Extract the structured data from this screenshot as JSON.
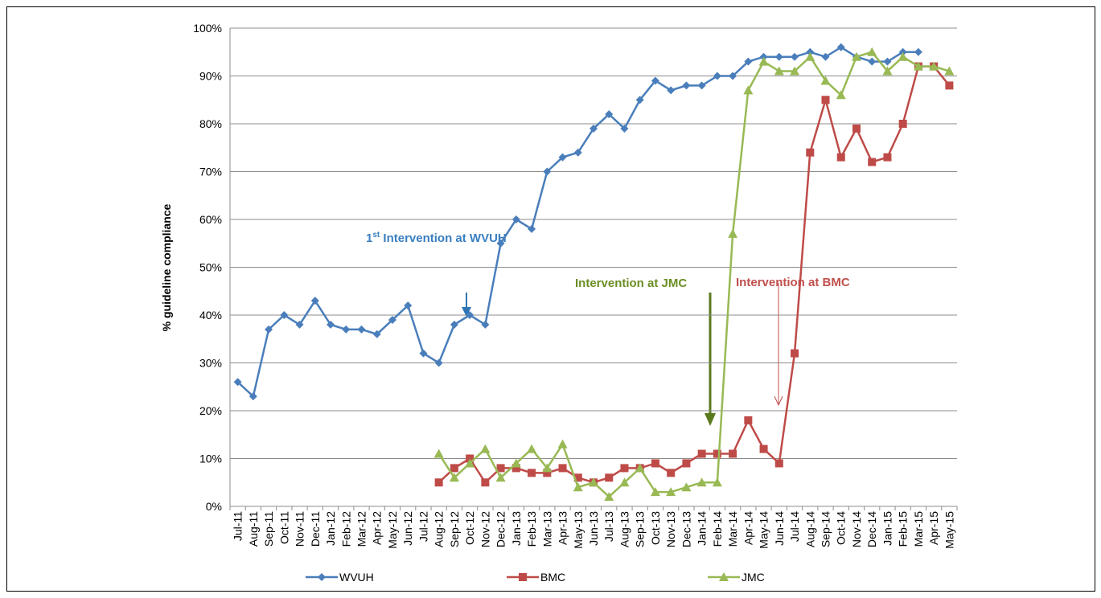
{
  "chart_data": {
    "type": "line",
    "ylabel": "% guideline compliance",
    "categories": [
      "Jul-11",
      "Aug-11",
      "Sep-11",
      "Oct-11",
      "Nov-11",
      "Dec-11",
      "Jan-12",
      "Feb-12",
      "Mar-12",
      "Apr-12",
      "May-12",
      "Jun-12",
      "Jul-12",
      "Aug-12",
      "Sep-12",
      "Oct-12",
      "Nov-12",
      "Dec-12",
      "Jan-13",
      "Feb-13",
      "Mar-13",
      "Apr-13",
      "May-13",
      "Jun-13",
      "Jul-13",
      "Aug-13",
      "Sep-13",
      "Oct-13",
      "Nov-13",
      "Dec-13",
      "Jan-14",
      "Feb-14",
      "Mar-14",
      "Apr-14",
      "May-14",
      "Jun-14",
      "Jul-14",
      "Aug-14",
      "Sep-14",
      "Oct-14",
      "Nov-14",
      "Dec-14",
      "Jan-15",
      "Feb-15",
      "Mar-15",
      "Apr-15",
      "May-15"
    ],
    "series": [
      {
        "name": "WVUH",
        "color": "#4a7ebb",
        "marker": "diamond",
        "values": [
          26,
          23,
          37,
          40,
          38,
          43,
          38,
          37,
          37,
          36,
          39,
          42,
          32,
          30,
          38,
          40,
          38,
          55,
          60,
          58,
          70,
          73,
          74,
          79,
          82,
          79,
          85,
          89,
          87,
          88,
          88,
          90,
          90,
          93,
          94,
          94,
          94,
          95,
          94,
          96,
          94,
          93,
          93,
          95,
          95,
          null,
          null
        ]
      },
      {
        "name": "BMC",
        "color": "#be4b48",
        "marker": "square",
        "values": [
          null,
          null,
          null,
          null,
          null,
          null,
          null,
          null,
          null,
          null,
          null,
          null,
          null,
          5,
          8,
          10,
          5,
          8,
          8,
          7,
          7,
          8,
          6,
          5,
          6,
          8,
          8,
          9,
          7,
          9,
          11,
          11,
          11,
          18,
          12,
          9,
          32,
          74,
          85,
          73,
          79,
          72,
          73,
          80,
          92,
          92,
          88
        ]
      },
      {
        "name": "JMC",
        "color": "#98b954",
        "marker": "triangle",
        "values": [
          null,
          null,
          null,
          null,
          null,
          null,
          null,
          null,
          null,
          null,
          null,
          null,
          null,
          11,
          6,
          9,
          12,
          6,
          9,
          12,
          8,
          13,
          4,
          5,
          2,
          5,
          8,
          3,
          3,
          4,
          5,
          5,
          57,
          87,
          93,
          91,
          91,
          94,
          89,
          86,
          94,
          95,
          91,
          94,
          92,
          92,
          91
        ]
      }
    ],
    "ylim": [
      0,
      100
    ],
    "yticks": [
      {
        "value": 0,
        "label": "0%"
      },
      {
        "value": 10,
        "label": "10%"
      },
      {
        "value": 20,
        "label": "20%"
      },
      {
        "value": 30,
        "label": "30%"
      },
      {
        "value": 40,
        "label": "40%"
      },
      {
        "value": 50,
        "label": "50%"
      },
      {
        "value": 60,
        "label": "60%"
      },
      {
        "value": 70,
        "label": "70%"
      },
      {
        "value": 80,
        "label": "80%"
      },
      {
        "value": 90,
        "label": "90%"
      },
      {
        "value": 100,
        "label": "100%"
      }
    ],
    "grid": true,
    "legend": "bottom",
    "annotations": [
      {
        "number": "1",
        "suffix": "st",
        "text": " Intervention at WVUH",
        "color": "#3a7fc1"
      },
      {
        "text": "Intervention at JMC",
        "color": "#6b8e23"
      },
      {
        "text": "Intervention at BMC",
        "color": "#c0504d"
      }
    ]
  }
}
